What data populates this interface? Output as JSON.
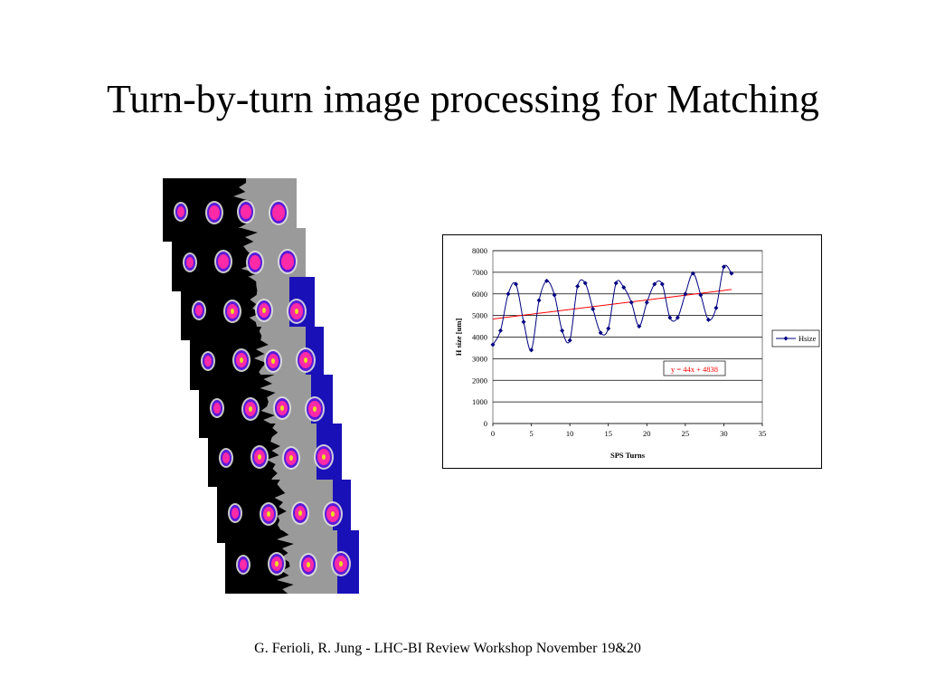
{
  "slide": {
    "title": "Turn-by-turn image processing for Matching",
    "footer": "G. Ferioli, R. Jung -  LHC-BI Review Workshop November 19&20"
  },
  "frames": {
    "count": 8,
    "colors": {
      "background": "#000000",
      "halo": "#9a9a9a",
      "bright": "#1a10b8",
      "core": "#ff2aa8",
      "hot": "#e8e020"
    }
  },
  "chart_data": {
    "type": "line",
    "title": "",
    "xlabel": "SPS Turns",
    "ylabel": "H size  [um]",
    "xlim": [
      0,
      35
    ],
    "ylim": [
      0,
      8000
    ],
    "xticks": [
      0,
      5,
      10,
      15,
      20,
      25,
      30,
      35
    ],
    "yticks": [
      0,
      1000,
      2000,
      3000,
      4000,
      5000,
      6000,
      7000,
      8000
    ],
    "grid": "horizontal",
    "legend_position": "right",
    "series": [
      {
        "name": "Hsize",
        "color": "#000080",
        "x": [
          0,
          1,
          2,
          3,
          4,
          5,
          6,
          7,
          8,
          9,
          10,
          11,
          12,
          13,
          14,
          15,
          16,
          17,
          18,
          19,
          20,
          21,
          22,
          23,
          24,
          25,
          26,
          27,
          28,
          29,
          30,
          31
        ],
        "y": [
          3650,
          4300,
          6000,
          6450,
          4700,
          3400,
          5700,
          6600,
          5950,
          4300,
          3850,
          6350,
          6500,
          5300,
          4200,
          4400,
          6500,
          6300,
          5600,
          4500,
          5600,
          6450,
          6450,
          4900,
          4900,
          6000,
          6950,
          5950,
          4800,
          5350,
          7250,
          6950
        ]
      }
    ],
    "trendline": {
      "color": "#ff0000",
      "slope": 44,
      "intercept": 4838,
      "x_range": [
        0,
        31
      ],
      "label": "y = 44x + 4838"
    }
  }
}
